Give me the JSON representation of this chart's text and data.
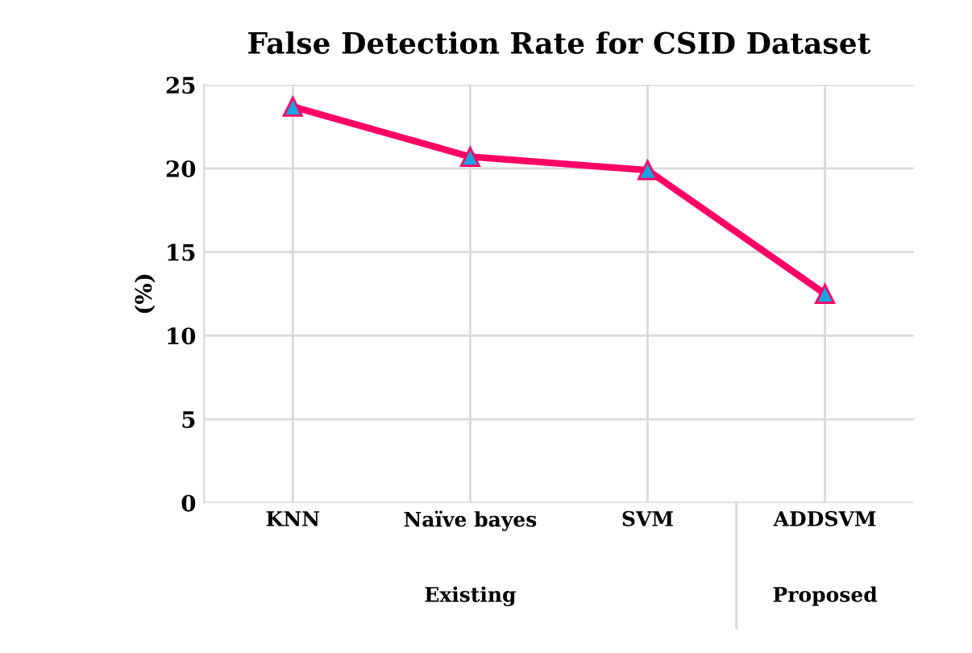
{
  "chart_data": {
    "type": "line",
    "title": "False Detection Rate for CSID Dataset",
    "ylabel": "(%)",
    "categories": [
      "KNN",
      "Naïve bayes",
      "SVM",
      "ADDSVM"
    ],
    "series": [
      {
        "color": "#ff0066",
        "values": [
          23.7,
          20.7,
          19.9,
          12.5
        ]
      }
    ],
    "marker": "triangle",
    "line_style": "solid",
    "ylim": [
      0,
      25
    ],
    "yticks": [
      0,
      5,
      10,
      15,
      20,
      25
    ],
    "grid": true,
    "annotations": [
      "Existing",
      "Proposed"
    ]
  }
}
